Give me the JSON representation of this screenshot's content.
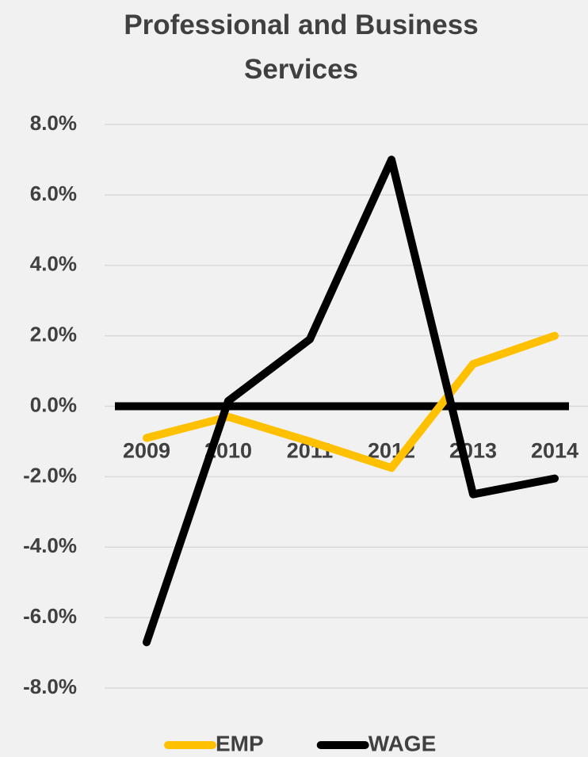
{
  "chart_data": {
    "type": "line",
    "title": "Professional and Business Services",
    "categories": [
      "2009",
      "2010",
      "2011",
      "2012",
      "2013",
      "2014"
    ],
    "series": [
      {
        "name": "EMP",
        "color": "#ffc000",
        "values": [
          -0.9,
          -0.3,
          -1.0,
          -1.75,
          1.2,
          2.0
        ]
      },
      {
        "name": "WAGE",
        "color": "#000000",
        "values": [
          -6.7,
          0.15,
          1.9,
          7.0,
          -2.5,
          -2.05
        ]
      }
    ],
    "ylim": [
      -8,
      8
    ],
    "yticks": [
      {
        "value": -8,
        "label": "-8.0%"
      },
      {
        "value": -6,
        "label": "-6.0%"
      },
      {
        "value": -4,
        "label": "-4.0%"
      },
      {
        "value": -2,
        "label": "-2.0%"
      },
      {
        "value": 0,
        "label": "0.0%"
      },
      {
        "value": 2,
        "label": "2.0%"
      },
      {
        "value": 4,
        "label": "4.0%"
      },
      {
        "value": 6,
        "label": "6.0%"
      },
      {
        "value": 8,
        "label": "8.0%"
      }
    ],
    "grid": true,
    "legend": "bottom"
  }
}
